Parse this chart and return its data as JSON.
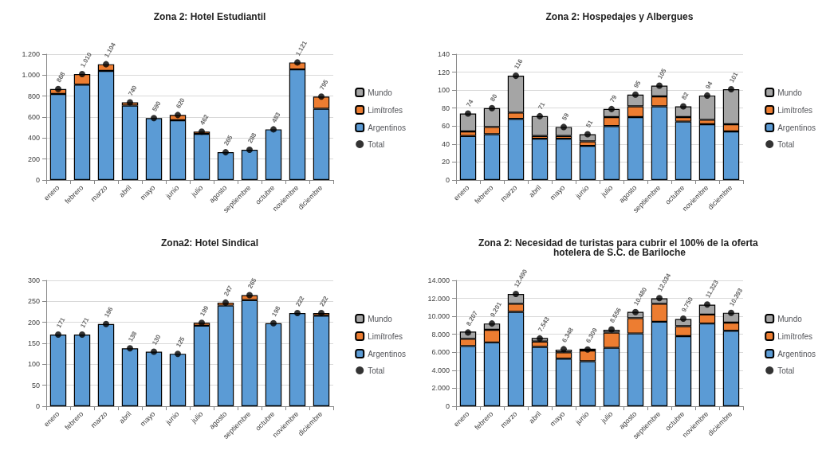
{
  "chart_data": [
    {
      "type": "bar",
      "stacked": true,
      "title": "Zona 2: Hotel Estudiantil",
      "categories": [
        "enero",
        "febrero",
        "marzo",
        "abril",
        "mayo",
        "junio",
        "julio",
        "agosto",
        "septiembre",
        "octubre",
        "noviembre",
        "diciembre"
      ],
      "ylim": [
        0,
        1200
      ],
      "yticks": [
        0,
        200,
        400,
        600,
        800,
        {
          "value": 1000,
          "label": "1.000"
        },
        {
          "value": 1200,
          "label": "1.200"
        }
      ],
      "grid": "y",
      "legend": "right",
      "series": [
        {
          "name": "Argentinos",
          "color": "#5b9bd5",
          "values": [
            820,
            910,
            1040,
            710,
            590,
            570,
            440,
            265,
            288,
            483,
            1055,
            680
          ]
        },
        {
          "name": "Limítrofes",
          "color": "#ed7d31",
          "values": [
            48,
            100,
            64,
            30,
            null,
            50,
            22,
            null,
            null,
            null,
            66,
            115
          ]
        },
        {
          "name": "Mundo",
          "color": "#a5a5a5",
          "values": [
            null,
            null,
            null,
            null,
            null,
            null,
            null,
            null,
            null,
            null,
            null,
            null
          ]
        },
        {
          "name": "Total",
          "type": "scatter",
          "marker": "circle",
          "color": "#000000",
          "values": [
            868,
            1010,
            1104,
            740,
            590,
            620,
            462,
            265,
            288,
            483,
            1121,
            795
          ],
          "value_labels": [
            "868",
            "1.010",
            "1.104",
            "740",
            "590",
            "620",
            "462",
            "265",
            "288",
            "483",
            "1.121",
            "795"
          ]
        }
      ]
    },
    {
      "type": "bar",
      "stacked": true,
      "title": "Zona 2: Hospedajes y Albergues",
      "categories": [
        "enero",
        "febrero",
        "marzo",
        "abril",
        "mayo",
        "junio",
        "julio",
        "agosto",
        "septiembre",
        "octubre",
        "noviembre",
        "diciembre"
      ],
      "ylim": [
        0,
        140
      ],
      "yticks": [
        0,
        20,
        40,
        60,
        80,
        100,
        120,
        140
      ],
      "grid": "y",
      "legend": "right",
      "series": [
        {
          "name": "Argentinos",
          "color": "#5b9bd5",
          "values": [
            49,
            51,
            68,
            46,
            46,
            38,
            60,
            70,
            82,
            65,
            62,
            54
          ]
        },
        {
          "name": "Limítrofes",
          "color": "#ed7d31",
          "values": [
            5,
            8,
            7,
            3,
            3,
            5,
            10,
            12,
            11,
            5,
            5,
            8
          ]
        },
        {
          "name": "Mundo",
          "color": "#a5a5a5",
          "values": [
            20,
            21,
            41,
            22,
            10,
            8,
            9,
            13,
            12,
            12,
            27,
            39
          ]
        },
        {
          "name": "Total",
          "type": "scatter",
          "marker": "circle",
          "color": "#000000",
          "values": [
            74,
            80,
            116,
            71,
            59,
            51,
            79,
            95,
            105,
            82,
            94,
            101
          ],
          "value_labels": [
            "74",
            "80",
            "116",
            "71",
            "59",
            "51",
            "79",
            "95",
            "105",
            "82",
            "94",
            "101"
          ]
        }
      ]
    },
    {
      "type": "bar",
      "stacked": true,
      "title": "Zona2: Hotel Sindical",
      "categories": [
        "enero",
        "febrero",
        "marzo",
        "abril",
        "mayo",
        "junio",
        "julio",
        "agosto",
        "septiembre",
        "octubre",
        "noviembre",
        "diciembre"
      ],
      "ylim": [
        0,
        300
      ],
      "yticks": [
        0,
        50,
        100,
        150,
        200,
        250,
        300
      ],
      "grid": "y",
      "legend": "right",
      "series": [
        {
          "name": "Argentinos",
          "color": "#5b9bd5",
          "values": [
            171,
            171,
            196,
            138,
            130,
            125,
            192,
            240,
            253,
            198,
            222,
            216
          ]
        },
        {
          "name": "Limítrofes",
          "color": "#ed7d31",
          "values": [
            null,
            null,
            null,
            null,
            null,
            null,
            7,
            7,
            12,
            null,
            null,
            6
          ]
        },
        {
          "name": "Mundo",
          "color": "#a5a5a5",
          "values": [
            null,
            null,
            null,
            null,
            null,
            null,
            null,
            null,
            null,
            null,
            null,
            null
          ]
        },
        {
          "name": "Total",
          "type": "scatter",
          "marker": "circle",
          "color": "#000000",
          "values": [
            171,
            171,
            196,
            138,
            130,
            125,
            199,
            247,
            265,
            198,
            222,
            222
          ],
          "value_labels": [
            "171",
            "171",
            "196",
            "138",
            "130",
            "125",
            "199",
            "247",
            "265",
            "198",
            "222",
            "222"
          ]
        }
      ]
    },
    {
      "type": "bar",
      "stacked": true,
      "title": "Zona 2: Necesidad de turistas para cubrir el 100% de la oferta hotelera de S.C. de Bariloche",
      "categories": [
        "enero",
        "febrero",
        "marzo",
        "abril",
        "mayo",
        "junio",
        "julio",
        "agosto",
        "septiembre",
        "octubre",
        "noviembre",
        "diciembre"
      ],
      "ylim": [
        0,
        14000
      ],
      "yticks": [
        0,
        {
          "value": 2000,
          "label": "2.000"
        },
        {
          "value": 4000,
          "label": "4.000"
        },
        {
          "value": 6000,
          "label": "6.000"
        },
        {
          "value": 8000,
          "label": "8.000"
        },
        {
          "value": 10000,
          "label": "10.000"
        },
        {
          "value": 12000,
          "label": "12.000"
        },
        {
          "value": 14000,
          "label": "14.000"
        }
      ],
      "grid": "y",
      "legend": "right",
      "series": [
        {
          "name": "Argentinos",
          "color": "#5b9bd5",
          "values": [
            6700,
            7100,
            10500,
            6600,
            5300,
            5000,
            6500,
            8100,
            9400,
            7800,
            9200,
            8400
          ]
        },
        {
          "name": "Limítrofes",
          "color": "#ed7d31",
          "values": [
            800,
            1400,
            900,
            600,
            700,
            1200,
            1700,
            1700,
            2000,
            1100,
            1000,
            900
          ]
        },
        {
          "name": "Mundo",
          "color": "#a5a5a5",
          "values": [
            800,
            700,
            1100,
            400,
            300,
            200,
            300,
            700,
            600,
            800,
            1100,
            1100
          ]
        },
        {
          "name": "Total",
          "type": "scatter",
          "marker": "circle",
          "color": "#000000",
          "values": [
            8207,
            9201,
            12490,
            7543,
            6348,
            6309,
            8556,
            10480,
            12034,
            9750,
            11323,
            10393
          ],
          "value_labels": [
            "8.207",
            "9.201",
            "12.490",
            "7.543",
            "6.348",
            "6.309",
            "8.556",
            "10.480",
            "12.034",
            "9.750",
            "11.323",
            "10.393"
          ]
        }
      ]
    }
  ]
}
